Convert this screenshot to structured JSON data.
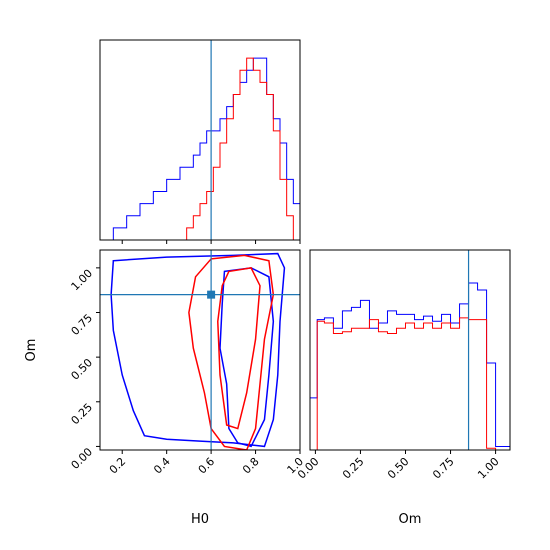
{
  "chart_data": [
    {
      "type": "histogram",
      "panel": "H0 marginal",
      "xlim": [
        0.1,
        1.0
      ],
      "bin_edges": [
        0.1,
        0.13,
        0.16,
        0.19,
        0.22,
        0.25,
        0.28,
        0.31,
        0.34,
        0.37,
        0.4,
        0.43,
        0.46,
        0.49,
        0.52,
        0.55,
        0.58,
        0.61,
        0.64,
        0.67,
        0.7,
        0.73,
        0.76,
        0.79,
        0.82,
        0.85,
        0.88,
        0.91,
        0.94,
        0.97,
        1.0
      ],
      "series": [
        {
          "color": "#0000ff",
          "values": [
            0,
            0,
            1,
            1,
            2,
            2,
            3,
            3,
            4,
            4,
            5,
            5,
            6,
            6,
            7,
            8,
            9,
            9,
            10,
            11,
            12,
            13,
            14,
            15,
            15,
            12,
            10,
            8,
            5,
            3
          ]
        },
        {
          "color": "#ff0000",
          "values": [
            0,
            0,
            0,
            0,
            0,
            0,
            0,
            0,
            0,
            0,
            0,
            0,
            0,
            1,
            2,
            3,
            4,
            6,
            8,
            10,
            12,
            14,
            15,
            14,
            13,
            12,
            9,
            5,
            2,
            0
          ]
        }
      ],
      "truth_line": 0.6,
      "x_ticks": [
        "0.2",
        "0.4",
        "0.6",
        "0.8",
        "1.0"
      ]
    },
    {
      "type": "contour",
      "panel": "H0 vs Om",
      "xlabel": "H0",
      "ylabel": "Om",
      "xlim": [
        0.1,
        1.0
      ],
      "ylim": [
        -0.02,
        1.1
      ],
      "x_ticks": [
        "0.2",
        "0.4",
        "0.6",
        "0.8",
        "1.0"
      ],
      "y_ticks": [
        "0.00",
        "0.25",
        "0.50",
        "0.75",
        "1.00"
      ],
      "truth_point": [
        0.6,
        0.85
      ],
      "series": [
        {
          "color": "#0000ff",
          "contours": [
            [
              [
                0.16,
                1.04
              ],
              [
                0.4,
                1.06
              ],
              [
                0.7,
                1.07
              ],
              [
                0.9,
                1.08
              ],
              [
                0.93,
                1.0
              ],
              [
                0.91,
                0.7
              ],
              [
                0.9,
                0.4
              ],
              [
                0.88,
                0.15
              ],
              [
                0.84,
                0.0
              ],
              [
                0.7,
                0.02
              ],
              [
                0.55,
                0.03
              ],
              [
                0.4,
                0.04
              ],
              [
                0.3,
                0.06
              ],
              [
                0.25,
                0.2
              ],
              [
                0.2,
                0.4
              ],
              [
                0.16,
                0.65
              ],
              [
                0.15,
                0.85
              ],
              [
                0.16,
                1.04
              ]
            ],
            [
              [
                0.66,
                0.98
              ],
              [
                0.78,
                1.0
              ],
              [
                0.86,
                0.95
              ],
              [
                0.88,
                0.7
              ],
              [
                0.86,
                0.4
              ],
              [
                0.84,
                0.15
              ],
              [
                0.78,
                0.0
              ],
              [
                0.72,
                0.02
              ],
              [
                0.68,
                0.1
              ],
              [
                0.67,
                0.35
              ],
              [
                0.64,
                0.55
              ],
              [
                0.65,
                0.8
              ],
              [
                0.66,
                0.98
              ]
            ]
          ]
        },
        {
          "color": "#ff0000",
          "contours": [
            [
              [
                0.6,
                1.05
              ],
              [
                0.75,
                1.07
              ],
              [
                0.86,
                1.04
              ],
              [
                0.88,
                0.85
              ],
              [
                0.84,
                0.6
              ],
              [
                0.82,
                0.35
              ],
              [
                0.8,
                0.1
              ],
              [
                0.76,
                -0.02
              ],
              [
                0.66,
                0.0
              ],
              [
                0.6,
                0.1
              ],
              [
                0.57,
                0.3
              ],
              [
                0.52,
                0.55
              ],
              [
                0.5,
                0.75
              ],
              [
                0.53,
                0.95
              ],
              [
                0.6,
                1.05
              ]
            ],
            [
              [
                0.68,
                0.98
              ],
              [
                0.78,
                1.0
              ],
              [
                0.82,
                0.9
              ],
              [
                0.8,
                0.6
              ],
              [
                0.76,
                0.3
              ],
              [
                0.72,
                0.1
              ],
              [
                0.67,
                0.12
              ],
              [
                0.64,
                0.4
              ],
              [
                0.63,
                0.7
              ],
              [
                0.65,
                0.9
              ],
              [
                0.68,
                0.98
              ]
            ]
          ]
        }
      ]
    },
    {
      "type": "histogram",
      "panel": "Om marginal",
      "xlabel": "Om",
      "xlim": [
        -0.03,
        1.08
      ],
      "bin_edges": [
        -0.03,
        0.01,
        0.05,
        0.1,
        0.15,
        0.2,
        0.25,
        0.3,
        0.35,
        0.4,
        0.45,
        0.5,
        0.55,
        0.6,
        0.65,
        0.7,
        0.75,
        0.8,
        0.85,
        0.9,
        0.95,
        1.0,
        1.04,
        1.08
      ],
      "series": [
        {
          "color": "#0000ff",
          "values": [
            3,
            7.5,
            7.6,
            7,
            8,
            8.2,
            8.6,
            7,
            7.3,
            8,
            7.8,
            7.8,
            7.5,
            7.7,
            7.4,
            7.8,
            7.3,
            8.4,
            9.6,
            9.2,
            5,
            0.2,
            0.2
          ]
        },
        {
          "color": "#ff0000",
          "values": [
            0,
            7.4,
            7.3,
            6.7,
            6.8,
            7,
            7,
            7.5,
            6.8,
            6.7,
            7,
            7.3,
            7,
            7.3,
            7,
            7.3,
            7,
            7.6,
            7.5,
            7.5,
            0.1,
            0,
            0
          ]
        }
      ],
      "truth_line": 0.85,
      "x_ticks": [
        "0.00",
        "0.25",
        "0.50",
        "0.75",
        "1.00"
      ]
    }
  ]
}
